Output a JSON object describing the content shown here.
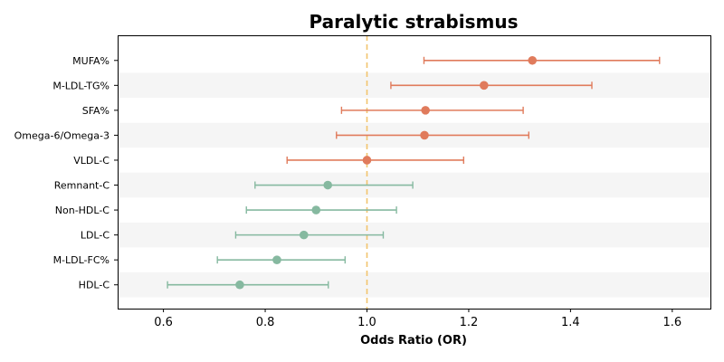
{
  "chart_data": {
    "type": "forest",
    "title": "Paralytic strabismus",
    "xlabel": "Odds Ratio (OR)",
    "ylabel": "",
    "xlim": [
      0.51,
      1.675
    ],
    "xticks": [
      0.6,
      0.8,
      1.0,
      1.2,
      1.4,
      1.6
    ],
    "xtick_labels": [
      "0.6",
      "0.8",
      "1.0",
      "1.2",
      "1.4",
      "1.6"
    ],
    "reference_line": 1.0,
    "colors": {
      "positive": "#e07b5c",
      "negative": "#86b9a0",
      "reference": "#f2c46d",
      "stripe": "#f5f5f5"
    },
    "rows": [
      {
        "label": "MUFA%",
        "or": 1.325,
        "lo": 1.112,
        "hi": 1.575
      },
      {
        "label": "M-LDL-TG%",
        "or": 1.23,
        "lo": 1.047,
        "hi": 1.442
      },
      {
        "label": "SFA%",
        "or": 1.115,
        "lo": 0.95,
        "hi": 1.307
      },
      {
        "label": "Omega-6/Omega-3",
        "or": 1.113,
        "lo": 0.94,
        "hi": 1.318
      },
      {
        "label": "VLDL-C",
        "or": 1.0,
        "lo": 0.843,
        "hi": 1.19
      },
      {
        "label": "Remnant-C",
        "or": 0.923,
        "lo": 0.78,
        "hi": 1.09
      },
      {
        "label": "Non-HDL-C",
        "or": 0.9,
        "lo": 0.763,
        "hi": 1.058
      },
      {
        "label": "LDL-C",
        "or": 0.876,
        "lo": 0.742,
        "hi": 1.032
      },
      {
        "label": "M-LDL-FC%",
        "or": 0.823,
        "lo": 0.706,
        "hi": 0.957
      },
      {
        "label": "HDL-C",
        "or": 0.75,
        "lo": 0.608,
        "hi": 0.924
      }
    ]
  }
}
